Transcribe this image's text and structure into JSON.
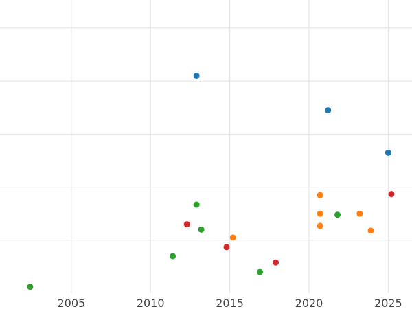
{
  "chart_data": {
    "type": "scatter",
    "title": "",
    "xlabel": "",
    "ylabel": "",
    "xlim": [
      2000.5,
      2026.5
    ],
    "ylim": [
      0.0,
      5.4
    ],
    "x_ticks": [
      2005,
      2010,
      2015,
      2020,
      2025
    ],
    "x_tick_labels": [
      "2005",
      "2010",
      "2015",
      "2020",
      "2025"
    ],
    "y_gridlines": [
      1.0,
      2.0,
      3.0,
      4.0,
      5.0
    ],
    "y_tick_labels_visible": false,
    "grid": true,
    "legend": "none",
    "series": [
      {
        "color": "#1f77b4",
        "points": [
          {
            "x": 2012.9,
            "y": 4.1
          },
          {
            "x": 2021.2,
            "y": 3.45
          },
          {
            "x": 2025.0,
            "y": 2.65
          }
        ]
      },
      {
        "color": "#ff7f0e",
        "points": [
          {
            "x": 2015.2,
            "y": 1.05
          },
          {
            "x": 2020.7,
            "y": 1.85
          },
          {
            "x": 2020.7,
            "y": 1.5
          },
          {
            "x": 2020.7,
            "y": 1.27
          },
          {
            "x": 2023.2,
            "y": 1.5
          },
          {
            "x": 2023.9,
            "y": 1.18
          }
        ]
      },
      {
        "color": "#2ca02c",
        "points": [
          {
            "x": 2002.4,
            "y": 0.12
          },
          {
            "x": 2011.4,
            "y": 0.7
          },
          {
            "x": 2012.9,
            "y": 1.67
          },
          {
            "x": 2013.2,
            "y": 1.2
          },
          {
            "x": 2016.9,
            "y": 0.4
          },
          {
            "x": 2021.8,
            "y": 1.48
          }
        ]
      },
      {
        "color": "#d62728",
        "points": [
          {
            "x": 2012.3,
            "y": 1.3
          },
          {
            "x": 2014.8,
            "y": 0.87
          },
          {
            "x": 2017.9,
            "y": 0.58
          },
          {
            "x": 2025.2,
            "y": 1.87
          }
        ]
      }
    ]
  }
}
